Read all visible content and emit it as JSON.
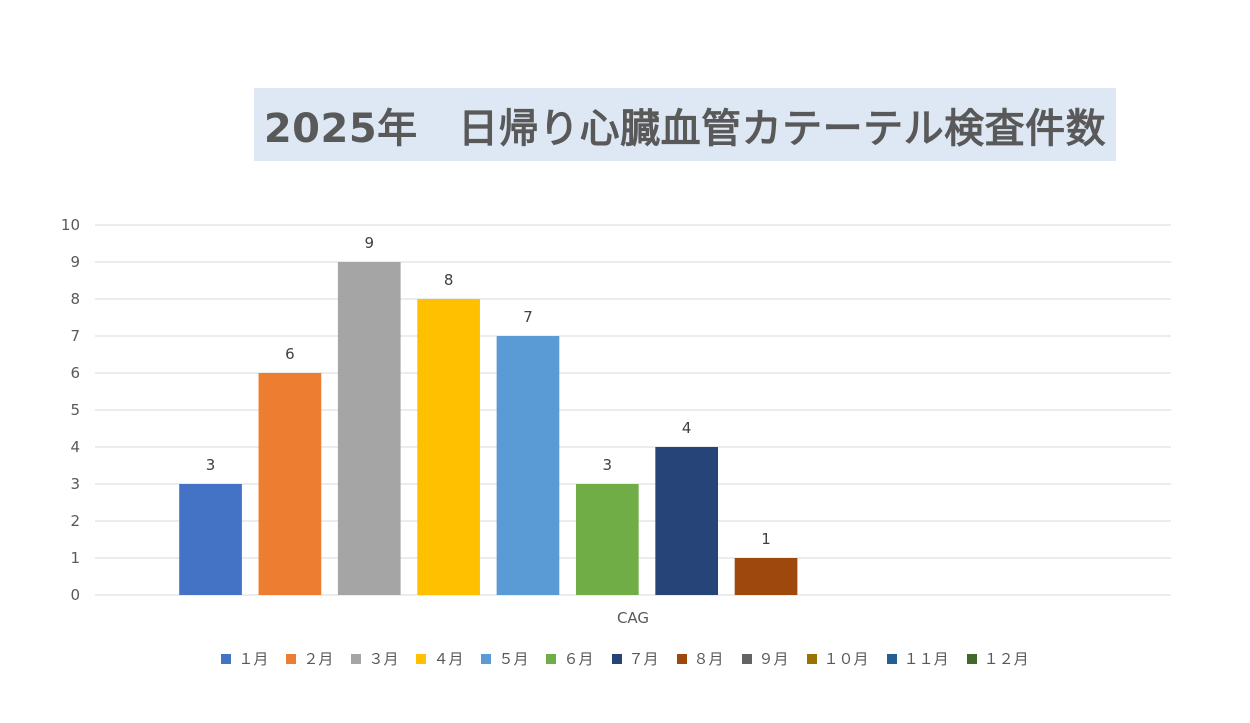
{
  "chart_data": {
    "type": "bar",
    "title": "2025年　日帰り心臓血管カテーテル検査件数",
    "categories": [
      "CAG"
    ],
    "series": [
      {
        "name": "１月",
        "values": [
          3
        ],
        "color": "#4472c4"
      },
      {
        "name": "２月",
        "values": [
          6
        ],
        "color": "#ed7d31"
      },
      {
        "name": "３月",
        "values": [
          9
        ],
        "color": "#a5a5a5"
      },
      {
        "name": "４月",
        "values": [
          8
        ],
        "color": "#ffc000"
      },
      {
        "name": "５月",
        "values": [
          7
        ],
        "color": "#5b9bd5"
      },
      {
        "name": "６月",
        "values": [
          3
        ],
        "color": "#70ad47"
      },
      {
        "name": "７月",
        "values": [
          4
        ],
        "color": "#264478"
      },
      {
        "name": "８月",
        "values": [
          1
        ],
        "color": "#9e480e"
      },
      {
        "name": "９月",
        "values": [
          null
        ],
        "color": "#636363"
      },
      {
        "name": "１０月",
        "values": [
          null
        ],
        "color": "#997300"
      },
      {
        "name": "１１月",
        "values": [
          null
        ],
        "color": "#255e91"
      },
      {
        "name": "１２月",
        "values": [
          null
        ],
        "color": "#43682b"
      }
    ],
    "ylim": [
      0,
      10
    ],
    "yticks": [
      "0",
      "1",
      "2",
      "3",
      "4",
      "5",
      "6",
      "7",
      "8",
      "9",
      "10"
    ],
    "grid": true,
    "legend": "bottom",
    "data_labels": true
  }
}
